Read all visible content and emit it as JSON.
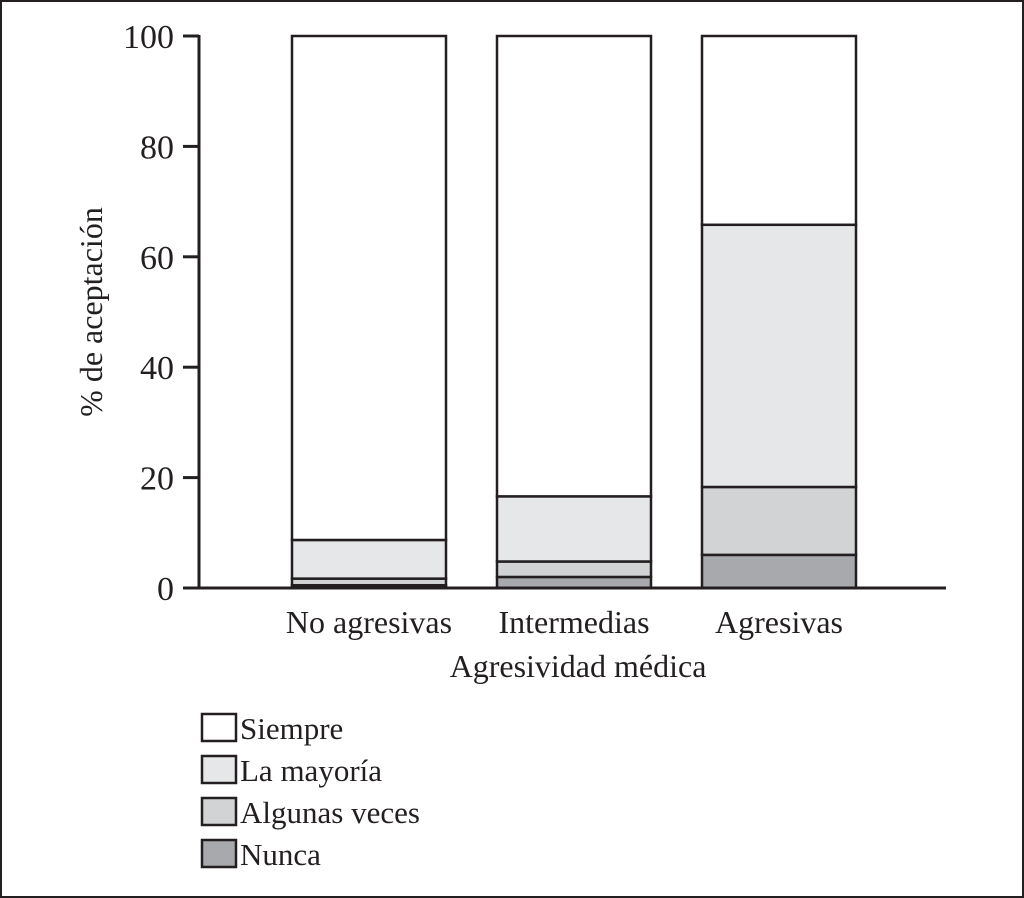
{
  "chart_data": {
    "type": "bar",
    "stacked": true,
    "categories": [
      "No agresivas",
      "Intermedias",
      "Agresivas"
    ],
    "xlabel": "Agresividad médica",
    "ylabel": "% de aceptación",
    "ylim": [
      0,
      100
    ],
    "yticks": [
      0,
      20,
      40,
      60,
      80,
      100
    ],
    "grid": false,
    "legend_position": "bottom-left",
    "series": [
      {
        "name": "Nunca",
        "color": "#a7a9ac",
        "values": [
          0.5,
          2,
          6
        ]
      },
      {
        "name": "Algunas veces",
        "color": "#d1d3d4",
        "values": [
          1.2,
          2.8,
          12.3
        ]
      },
      {
        "name": "La mayoría",
        "color": "#e6e7e8",
        "values": [
          7,
          11.8,
          47.5
        ]
      },
      {
        "name": "Siempre",
        "color": "#ffffff",
        "values": [
          91.3,
          83.4,
          34.2
        ]
      }
    ],
    "legend_order": [
      "Siempre",
      "La mayoría",
      "Algunas veces",
      "Nunca"
    ]
  }
}
